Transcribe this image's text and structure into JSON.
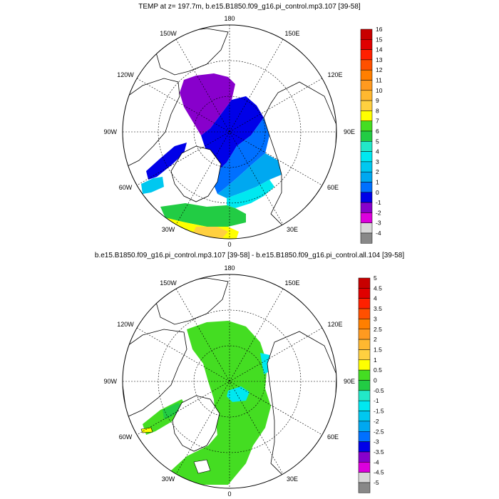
{
  "panel1": {
    "title": "TEMP at z= 197.7m, b.e15.B1850.f09_g16.pi_control.mp3.107 [39-58]",
    "lon_labels": {
      "n": "180",
      "nw": "150W",
      "ne": "150E",
      "w1": "120W",
      "e1": "120E",
      "w2": "90W",
      "e2": "90E",
      "w3": "60W",
      "e3": "60E",
      "sw": "30W",
      "se": "30E",
      "s": "0"
    },
    "colorbar": {
      "labels": [
        "16",
        "15",
        "14",
        "13",
        "12",
        "11",
        "10",
        "9",
        "8",
        "7",
        "6",
        "5",
        "4",
        "3",
        "2",
        "1",
        "0",
        "-1",
        "-2",
        "-3",
        "-4"
      ],
      "colors": [
        "#c80000",
        "#e00000",
        "#ff2000",
        "#ff5000",
        "#ff7f00",
        "#ff9a20",
        "#ffb830",
        "#ffd040",
        "#ffff00",
        "#44dd22",
        "#22cc44",
        "#22e8c8",
        "#00e8f0",
        "#00c8f0",
        "#00a8f0",
        "#0070ff",
        "#0000e8",
        "#8800cc",
        "#dd00dd",
        "#d8d8d8",
        "#888888"
      ]
    }
  },
  "panel2": {
    "title": "b.e15.B1850.f09_g16.pi_control.mp3.107 [39-58] - b.e15.B1850.f09_g16.pi_control.all.104 [39-58]",
    "lon_labels": {
      "n": "180",
      "nw": "150W",
      "ne": "150E",
      "w1": "120W",
      "e1": "120E",
      "w2": "90W",
      "e2": "90E",
      "w3": "60W",
      "e3": "60E",
      "sw": "30W",
      "se": "30E",
      "s": "0"
    },
    "colorbar": {
      "labels": [
        "5",
        "4.5",
        "4",
        "3.5",
        "3",
        "2.5",
        "2",
        "1.5",
        "1",
        "0.5",
        "0",
        "-0.5",
        "-1",
        "-1.5",
        "-2",
        "-2.5",
        "-3",
        "-3.5",
        "-4",
        "-4.5",
        "-5"
      ],
      "colors": [
        "#c80000",
        "#e00000",
        "#ff2000",
        "#ff5000",
        "#ff7f00",
        "#ff9a20",
        "#ffb830",
        "#ffd040",
        "#ffff00",
        "#44dd22",
        "#22cc44",
        "#22e8c8",
        "#00e8f0",
        "#00c8f0",
        "#00a8f0",
        "#0070ff",
        "#0000e8",
        "#8800cc",
        "#dd00dd",
        "#d8d8d8",
        "#888888"
      ]
    }
  },
  "colors": {
    "purple": "#8800cc",
    "blue": "#0000e8",
    "mid_blue": "#0070ff",
    "light_blue": "#00a8f0",
    "cyan": "#00e8f0",
    "green": "#22cc44",
    "bright_green": "#44dd22",
    "yellow": "#ffff00",
    "gold": "#ffd040",
    "magenta": "#dd00dd"
  }
}
